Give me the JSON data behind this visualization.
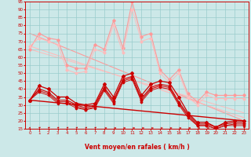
{
  "bg_color": "#cce8e8",
  "grid_color": "#99cccc",
  "dark_red": "#cc0000",
  "light_red1": "#ff9999",
  "light_red2": "#ffbbbb",
  "xlabel": "Vent moyen/en rafales ( km/h )",
  "xlim": [
    -0.5,
    23.5
  ],
  "ylim": [
    15,
    95
  ],
  "ytick_vals": [
    15,
    20,
    25,
    30,
    35,
    40,
    45,
    50,
    55,
    60,
    65,
    70,
    75,
    80,
    85,
    90,
    95
  ],
  "xtick_vals": [
    0,
    1,
    2,
    3,
    4,
    5,
    6,
    7,
    8,
    9,
    10,
    11,
    12,
    13,
    14,
    15,
    16,
    17,
    18,
    19,
    20,
    21,
    22,
    23
  ],
  "rafales_1_x": [
    0,
    1,
    2,
    3,
    4,
    5,
    6,
    7,
    8,
    9,
    10,
    11,
    12,
    13,
    14,
    15,
    16,
    17,
    18,
    19,
    20,
    21,
    22,
    23
  ],
  "rafales_1_y": [
    65,
    75,
    72,
    71,
    55,
    53,
    53,
    68,
    65,
    83,
    66,
    95,
    73,
    75,
    52,
    46,
    52,
    37,
    32,
    38,
    36,
    36,
    36,
    36
  ],
  "rafales_2_x": [
    0,
    1,
    2,
    3,
    4,
    5,
    6,
    7,
    8,
    9,
    10,
    11,
    12,
    13,
    14,
    15,
    16,
    17,
    18,
    19,
    20,
    21,
    22,
    23
  ],
  "rafales_2_y": [
    67,
    72,
    70,
    68,
    52,
    50,
    51,
    65,
    63,
    80,
    63,
    90,
    70,
    72,
    50,
    44,
    50,
    35,
    30,
    36,
    34,
    34,
    34,
    34
  ],
  "rafales_trend1_x": [
    0,
    23
  ],
  "rafales_trend1_y": [
    75,
    20
  ],
  "rafales_trend2_x": [
    0,
    23
  ],
  "rafales_trend2_y": [
    67,
    22
  ],
  "rafales_trend3_x": [
    0,
    23
  ],
  "rafales_trend3_y": [
    65,
    25
  ],
  "vent_1_x": [
    0,
    1,
    2,
    3,
    4,
    5,
    6,
    7,
    8,
    9,
    10,
    11,
    12,
    13,
    14,
    15,
    16,
    17,
    18,
    19,
    20,
    21,
    22,
    23
  ],
  "vent_1_y": [
    33,
    42,
    40,
    35,
    35,
    31,
    30,
    31,
    43,
    35,
    48,
    50,
    36,
    43,
    45,
    44,
    35,
    25,
    19,
    19,
    16,
    19,
    20,
    20
  ],
  "vent_2_x": [
    0,
    1,
    2,
    3,
    4,
    5,
    6,
    7,
    8,
    9,
    10,
    11,
    12,
    13,
    14,
    15,
    16,
    17,
    18,
    19,
    20,
    21,
    22,
    23
  ],
  "vent_2_y": [
    33,
    40,
    38,
    33,
    33,
    30,
    28,
    30,
    41,
    33,
    46,
    48,
    34,
    41,
    43,
    42,
    32,
    24,
    18,
    18,
    16,
    18,
    19,
    19
  ],
  "vent_3_x": [
    0,
    1,
    2,
    3,
    4,
    5,
    6,
    7,
    8,
    9,
    10,
    11,
    12,
    13,
    14,
    15,
    16,
    17,
    18,
    19,
    20,
    21,
    22,
    23
  ],
  "vent_3_y": [
    33,
    39,
    37,
    32,
    32,
    29,
    27,
    29,
    40,
    32,
    45,
    47,
    33,
    40,
    42,
    41,
    31,
    23,
    17,
    17,
    15,
    17,
    18,
    18
  ],
  "vent_4_x": [
    0,
    1,
    2,
    3,
    4,
    5,
    6,
    7,
    8,
    9,
    10,
    11,
    12,
    13,
    14,
    15,
    16,
    17,
    18,
    19,
    20,
    21,
    22,
    23
  ],
  "vent_4_y": [
    33,
    38,
    36,
    31,
    31,
    28,
    27,
    28,
    39,
    31,
    44,
    46,
    32,
    39,
    41,
    40,
    30,
    22,
    17,
    17,
    15,
    17,
    17,
    17
  ],
  "vent_trend_x": [
    0,
    23
  ],
  "vent_trend_y": [
    33,
    20
  ],
  "arrow_angles_deg": [
    80,
    50,
    50,
    50,
    50,
    50,
    50,
    50,
    0,
    0,
    0,
    0,
    0,
    0,
    0,
    0,
    0,
    0,
    0,
    0,
    50,
    50,
    50,
    50
  ]
}
